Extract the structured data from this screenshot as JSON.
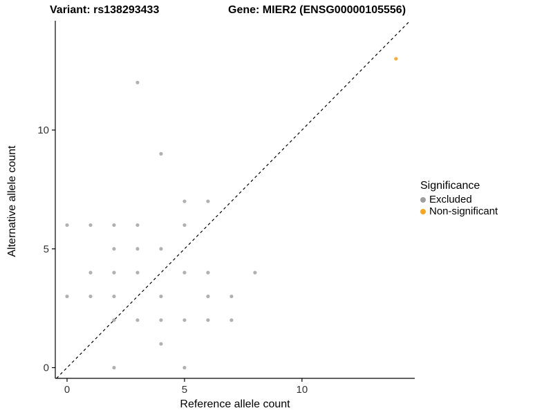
{
  "chart_data": {
    "type": "scatter",
    "title_left": "Variant: rs138293433",
    "title_right": "Gene: MIER2 (ENSG00000105556)",
    "xlabel": "Reference allele count",
    "ylabel": "Alternative allele count",
    "xlim": [
      -0.5,
      14.8
    ],
    "ylim": [
      -0.45,
      14.6
    ],
    "xticks": [
      0,
      5,
      10
    ],
    "yticks": [
      0,
      5,
      10
    ],
    "grid": false,
    "reference_line": {
      "type": "identity",
      "style": "dashed",
      "color": "#000000"
    },
    "legend": {
      "title": "Significance",
      "position": "right",
      "entries": [
        {
          "label": "Excluded",
          "color": "#9e9e9e"
        },
        {
          "label": "Non-significant",
          "color": "#f5a623"
        }
      ]
    },
    "series": [
      {
        "name": "Excluded",
        "color": "#a8a8a8",
        "points": [
          [
            0,
            3
          ],
          [
            0,
            6
          ],
          [
            1,
            3
          ],
          [
            1,
            4
          ],
          [
            1,
            6
          ],
          [
            2,
            0
          ],
          [
            2,
            2
          ],
          [
            2,
            3
          ],
          [
            2,
            4
          ],
          [
            2,
            5
          ],
          [
            2,
            6
          ],
          [
            3,
            2
          ],
          [
            3,
            4
          ],
          [
            3,
            5
          ],
          [
            3,
            6
          ],
          [
            3,
            12
          ],
          [
            4,
            1
          ],
          [
            4,
            2
          ],
          [
            4,
            3
          ],
          [
            4,
            5
          ],
          [
            4,
            9
          ],
          [
            5,
            0
          ],
          [
            5,
            2
          ],
          [
            5,
            4
          ],
          [
            5,
            6
          ],
          [
            5,
            7
          ],
          [
            6,
            2
          ],
          [
            6,
            3
          ],
          [
            6,
            4
          ],
          [
            6,
            7
          ],
          [
            7,
            2
          ],
          [
            7,
            3
          ],
          [
            8,
            4
          ]
        ]
      },
      {
        "name": "Non-significant",
        "color": "#f5a623",
        "points": [
          [
            14,
            13
          ]
        ]
      }
    ]
  }
}
